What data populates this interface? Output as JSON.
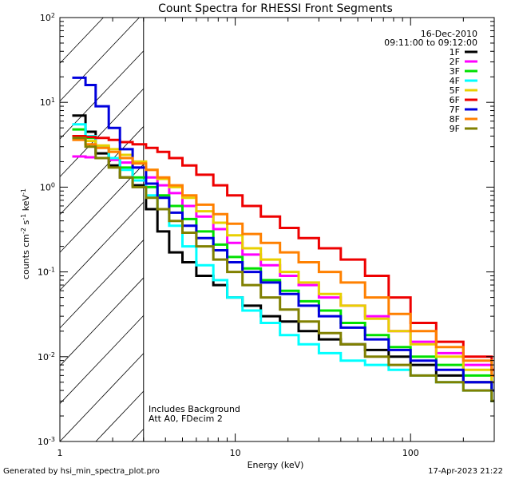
{
  "chart_data": {
    "type": "line",
    "title": "Count Spectra for RHESSI Front Segments",
    "xlabel": "Energy (keV)",
    "ylabel": "counts cm^-2 s^-1 keV^-1",
    "xscale": "log",
    "yscale": "log",
    "xlim": [
      1.0,
      300.0
    ],
    "ylim": [
      0.001,
      100.0
    ],
    "x_tick_labels": [
      "1",
      "10",
      "100"
    ],
    "y_tick_labels": [
      "10^-3",
      "10^-2",
      "10^-1",
      "10^0",
      "10^1",
      "10^2"
    ],
    "hatched_region": [
      1.0,
      3.0
    ],
    "date": "16-Dec-2010",
    "time_range": "09:11:00 to 09:12:00",
    "annotations": [
      "Includes Background",
      "Att A0, FDecim 2"
    ],
    "series": [
      {
        "name": "1F",
        "color": "#000000",
        "points": [
          [
            1.2,
            7.0
          ],
          [
            1.4,
            4.5
          ],
          [
            1.6,
            2.5
          ],
          [
            1.9,
            1.8
          ],
          [
            2.2,
            1.3
          ],
          [
            2.6,
            1.05
          ],
          [
            3.1,
            0.55
          ],
          [
            3.6,
            0.3
          ],
          [
            4.2,
            0.17
          ],
          [
            5.0,
            0.13
          ],
          [
            6.0,
            0.09
          ],
          [
            7.5,
            0.07
          ],
          [
            9.0,
            0.05
          ],
          [
            11.0,
            0.04
          ],
          [
            14.0,
            0.03
          ],
          [
            18.0,
            0.026
          ],
          [
            23.0,
            0.02
          ],
          [
            30.0,
            0.016
          ],
          [
            40.0,
            0.014
          ],
          [
            55.0,
            0.012
          ],
          [
            75.0,
            0.01
          ],
          [
            100.0,
            0.008
          ],
          [
            140.0,
            0.006
          ],
          [
            200.0,
            0.005
          ],
          [
            290.0,
            0.003
          ]
        ]
      },
      {
        "name": "2F",
        "color": "#ff00ff",
        "points": [
          [
            1.2,
            2.3
          ],
          [
            1.4,
            2.25
          ],
          [
            1.6,
            2.2
          ],
          [
            1.9,
            2.1
          ],
          [
            2.2,
            1.95
          ],
          [
            2.6,
            1.7
          ],
          [
            3.1,
            1.3
          ],
          [
            3.6,
            1.05
          ],
          [
            4.2,
            0.85
          ],
          [
            5.0,
            0.6
          ],
          [
            6.0,
            0.45
          ],
          [
            7.5,
            0.32
          ],
          [
            9.0,
            0.22
          ],
          [
            11.0,
            0.16
          ],
          [
            14.0,
            0.12
          ],
          [
            18.0,
            0.09
          ],
          [
            23.0,
            0.07
          ],
          [
            30.0,
            0.05
          ],
          [
            40.0,
            0.04
          ],
          [
            55.0,
            0.03
          ],
          [
            75.0,
            0.02
          ],
          [
            100.0,
            0.015
          ],
          [
            140.0,
            0.011
          ],
          [
            200.0,
            0.008
          ],
          [
            290.0,
            0.006
          ]
        ]
      },
      {
        "name": "3F",
        "color": "#00e000",
        "points": [
          [
            1.2,
            4.8
          ],
          [
            1.4,
            3.8
          ],
          [
            1.6,
            3.0
          ],
          [
            1.9,
            2.2
          ],
          [
            2.2,
            1.7
          ],
          [
            2.6,
            1.3
          ],
          [
            3.1,
            1.0
          ],
          [
            3.6,
            0.8
          ],
          [
            4.2,
            0.6
          ],
          [
            5.0,
            0.42
          ],
          [
            6.0,
            0.3
          ],
          [
            7.5,
            0.21
          ],
          [
            9.0,
            0.15
          ],
          [
            11.0,
            0.11
          ],
          [
            14.0,
            0.08
          ],
          [
            18.0,
            0.06
          ],
          [
            23.0,
            0.045
          ],
          [
            30.0,
            0.035
          ],
          [
            40.0,
            0.025
          ],
          [
            55.0,
            0.018
          ],
          [
            75.0,
            0.013
          ],
          [
            100.0,
            0.01
          ],
          [
            140.0,
            0.008
          ],
          [
            200.0,
            0.006
          ],
          [
            290.0,
            0.004
          ]
        ]
      },
      {
        "name": "4F",
        "color": "#00ffff",
        "points": [
          [
            1.2,
            5.5
          ],
          [
            1.4,
            4.0
          ],
          [
            1.6,
            3.0
          ],
          [
            1.9,
            2.2
          ],
          [
            2.2,
            1.6
          ],
          [
            2.6,
            1.2
          ],
          [
            3.1,
            0.8
          ],
          [
            3.6,
            0.55
          ],
          [
            4.2,
            0.35
          ],
          [
            5.0,
            0.2
          ],
          [
            6.0,
            0.12
          ],
          [
            7.5,
            0.08
          ],
          [
            9.0,
            0.05
          ],
          [
            11.0,
            0.035
          ],
          [
            14.0,
            0.025
          ],
          [
            18.0,
            0.018
          ],
          [
            23.0,
            0.014
          ],
          [
            30.0,
            0.011
          ],
          [
            40.0,
            0.009
          ],
          [
            55.0,
            0.008
          ],
          [
            75.0,
            0.007
          ],
          [
            100.0,
            0.006
          ],
          [
            140.0,
            0.005
          ],
          [
            200.0,
            0.004
          ],
          [
            290.0,
            0.003
          ]
        ]
      },
      {
        "name": "5F",
        "color": "#e8d000",
        "points": [
          [
            1.2,
            3.9
          ],
          [
            1.4,
            3.5
          ],
          [
            1.6,
            3.1
          ],
          [
            1.9,
            2.8
          ],
          [
            2.2,
            2.4
          ],
          [
            2.6,
            2.0
          ],
          [
            3.1,
            1.6
          ],
          [
            3.6,
            1.25
          ],
          [
            4.2,
            1.0
          ],
          [
            5.0,
            0.75
          ],
          [
            6.0,
            0.52
          ],
          [
            7.5,
            0.38
          ],
          [
            9.0,
            0.27
          ],
          [
            11.0,
            0.19
          ],
          [
            14.0,
            0.14
          ],
          [
            18.0,
            0.1
          ],
          [
            23.0,
            0.075
          ],
          [
            30.0,
            0.055
          ],
          [
            40.0,
            0.04
          ],
          [
            55.0,
            0.028
          ],
          [
            75.0,
            0.02
          ],
          [
            100.0,
            0.014
          ],
          [
            140.0,
            0.01
          ],
          [
            200.0,
            0.007
          ],
          [
            290.0,
            0.005
          ]
        ]
      },
      {
        "name": "6F",
        "color": "#ee0000",
        "points": [
          [
            1.2,
            4.0
          ],
          [
            1.4,
            3.9
          ],
          [
            1.6,
            3.8
          ],
          [
            1.9,
            3.6
          ],
          [
            2.2,
            3.4
          ],
          [
            2.6,
            3.2
          ],
          [
            3.1,
            2.9
          ],
          [
            3.6,
            2.6
          ],
          [
            4.2,
            2.2
          ],
          [
            5.0,
            1.8
          ],
          [
            6.0,
            1.4
          ],
          [
            7.5,
            1.05
          ],
          [
            9.0,
            0.8
          ],
          [
            11.0,
            0.6
          ],
          [
            14.0,
            0.45
          ],
          [
            18.0,
            0.33
          ],
          [
            23.0,
            0.25
          ],
          [
            30.0,
            0.19
          ],
          [
            40.0,
            0.14
          ],
          [
            55.0,
            0.09
          ],
          [
            75.0,
            0.05
          ],
          [
            100.0,
            0.025
          ],
          [
            140.0,
            0.015
          ],
          [
            200.0,
            0.01
          ],
          [
            290.0,
            0.007
          ]
        ]
      },
      {
        "name": "7F",
        "color": "#0000dd",
        "points": [
          [
            1.2,
            19.5
          ],
          [
            1.4,
            16.0
          ],
          [
            1.6,
            9.0
          ],
          [
            1.9,
            5.0
          ],
          [
            2.2,
            2.8
          ],
          [
            2.6,
            1.7
          ],
          [
            3.1,
            1.1
          ],
          [
            3.6,
            0.75
          ],
          [
            4.2,
            0.5
          ],
          [
            5.0,
            0.35
          ],
          [
            6.0,
            0.25
          ],
          [
            7.5,
            0.18
          ],
          [
            9.0,
            0.13
          ],
          [
            11.0,
            0.1
          ],
          [
            14.0,
            0.075
          ],
          [
            18.0,
            0.055
          ],
          [
            23.0,
            0.04
          ],
          [
            30.0,
            0.03
          ],
          [
            40.0,
            0.022
          ],
          [
            55.0,
            0.016
          ],
          [
            75.0,
            0.012
          ],
          [
            100.0,
            0.009
          ],
          [
            140.0,
            0.007
          ],
          [
            200.0,
            0.005
          ],
          [
            290.0,
            0.004
          ]
        ]
      },
      {
        "name": "8F",
        "color": "#ff8000",
        "points": [
          [
            1.2,
            3.6
          ],
          [
            1.4,
            3.2
          ],
          [
            1.6,
            2.9
          ],
          [
            1.9,
            2.6
          ],
          [
            2.2,
            2.2
          ],
          [
            2.6,
            1.9
          ],
          [
            3.1,
            1.6
          ],
          [
            3.6,
            1.3
          ],
          [
            4.2,
            1.05
          ],
          [
            5.0,
            0.8
          ],
          [
            6.0,
            0.62
          ],
          [
            7.5,
            0.48
          ],
          [
            9.0,
            0.37
          ],
          [
            11.0,
            0.28
          ],
          [
            14.0,
            0.22
          ],
          [
            18.0,
            0.17
          ],
          [
            23.0,
            0.13
          ],
          [
            30.0,
            0.1
          ],
          [
            40.0,
            0.075
          ],
          [
            55.0,
            0.05
          ],
          [
            75.0,
            0.032
          ],
          [
            100.0,
            0.02
          ],
          [
            140.0,
            0.013
          ],
          [
            200.0,
            0.009
          ],
          [
            290.0,
            0.006
          ]
        ]
      },
      {
        "name": "9F",
        "color": "#808000",
        "points": [
          [
            1.2,
            3.8
          ],
          [
            1.4,
            3.0
          ],
          [
            1.6,
            2.2
          ],
          [
            1.9,
            1.7
          ],
          [
            2.2,
            1.3
          ],
          [
            2.6,
            1.0
          ],
          [
            3.1,
            0.75
          ],
          [
            3.6,
            0.55
          ],
          [
            4.2,
            0.4
          ],
          [
            5.0,
            0.29
          ],
          [
            6.0,
            0.2
          ],
          [
            7.5,
            0.14
          ],
          [
            9.0,
            0.1
          ],
          [
            11.0,
            0.07
          ],
          [
            14.0,
            0.05
          ],
          [
            18.0,
            0.036
          ],
          [
            23.0,
            0.026
          ],
          [
            30.0,
            0.019
          ],
          [
            40.0,
            0.014
          ],
          [
            55.0,
            0.01
          ],
          [
            75.0,
            0.008
          ],
          [
            100.0,
            0.006
          ],
          [
            140.0,
            0.005
          ],
          [
            200.0,
            0.004
          ],
          [
            290.0,
            0.003
          ]
        ]
      }
    ]
  },
  "footer": {
    "generated_by": "Generated by hsi_min_spectra_plot.pro",
    "timestamp": "17-Apr-2023 21:22"
  }
}
